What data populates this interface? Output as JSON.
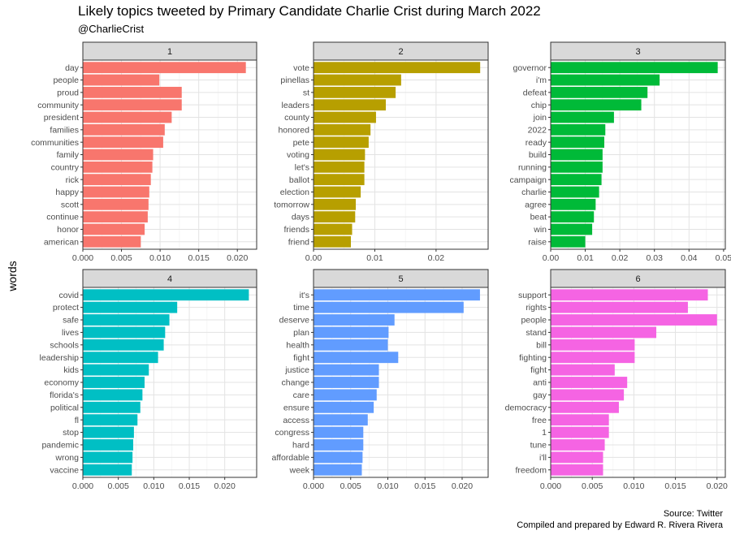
{
  "title": "Likely topics tweeted by Primary Candidate Charlie Crist during March 2022",
  "subtitle": "@CharlieCrist",
  "caption": {
    "line1": "Source: Twitter",
    "line2": "Compiled and prepared by Edward R. Rivera Rivera"
  },
  "chart_data": {
    "type": "bar",
    "orientation": "horizontal",
    "ylabel": "words",
    "xlabel": "",
    "grid": true,
    "legend": "none",
    "facets": [
      {
        "strip": "1",
        "color": "#F8766D",
        "xlim": [
          0,
          0.0225
        ],
        "xticks": [
          0.0,
          0.005,
          0.01,
          0.015,
          0.02
        ],
        "xtick_labels": [
          "0.000",
          "0.005",
          "0.010",
          "0.015",
          "0.020"
        ],
        "categories": [
          "day",
          "people",
          "proud",
          "community",
          "president",
          "families",
          "communities",
          "family",
          "country",
          "rick",
          "happy",
          "scott",
          "continue",
          "honor",
          "american"
        ],
        "values": [
          0.0211,
          0.0099,
          0.0128,
          0.0128,
          0.0115,
          0.0106,
          0.0104,
          0.0091,
          0.009,
          0.0088,
          0.0086,
          0.0085,
          0.0084,
          0.008,
          0.0075
        ]
      },
      {
        "strip": "2",
        "color": "#B79F00",
        "xlim": [
          0,
          0.0285
        ],
        "xticks": [
          0.0,
          0.01,
          0.02
        ],
        "xtick_labels": [
          "0.00",
          "0.01",
          "0.02"
        ],
        "categories": [
          "vote",
          "pinellas",
          "st",
          "leaders",
          "county",
          "honored",
          "pete",
          "voting",
          "let's",
          "ballot",
          "election",
          "tomorrow",
          "days",
          "friends",
          "friend"
        ],
        "values": [
          0.0272,
          0.0143,
          0.0134,
          0.0118,
          0.0102,
          0.0093,
          0.009,
          0.0084,
          0.0083,
          0.0083,
          0.0077,
          0.0069,
          0.0068,
          0.0063,
          0.0061
        ]
      },
      {
        "strip": "3",
        "color": "#00BA38",
        "xlim": [
          0,
          0.0505
        ],
        "xticks": [
          0.0,
          0.01,
          0.02,
          0.03,
          0.04,
          0.05
        ],
        "xtick_labels": [
          "0.00",
          "0.01",
          "0.02",
          "0.03",
          "0.04",
          "0.05"
        ],
        "categories": [
          "governor",
          "i'm",
          "defeat",
          "chip",
          "join",
          "2022",
          "ready",
          "build",
          "running",
          "campaign",
          "charlie",
          "agree",
          "beat",
          "win",
          "raise"
        ],
        "values": [
          0.0483,
          0.0315,
          0.028,
          0.0262,
          0.0183,
          0.0158,
          0.0155,
          0.015,
          0.015,
          0.0147,
          0.014,
          0.013,
          0.0125,
          0.012,
          0.01
        ]
      },
      {
        "strip": "4",
        "color": "#00BFC4",
        "xlim": [
          0,
          0.0245
        ],
        "xticks": [
          0.0,
          0.005,
          0.01,
          0.015,
          0.02
        ],
        "xtick_labels": [
          "0.000",
          "0.005",
          "0.010",
          "0.015",
          "0.020"
        ],
        "categories": [
          "covid",
          "protect",
          "safe",
          "lives",
          "schools",
          "leadership",
          "kids",
          "economy",
          "florida's",
          "political",
          "fl",
          "stop",
          "pandemic",
          "wrong",
          "vaccine"
        ],
        "values": [
          0.0234,
          0.0133,
          0.0122,
          0.0116,
          0.0114,
          0.0106,
          0.0093,
          0.0087,
          0.0084,
          0.0081,
          0.0077,
          0.0072,
          0.0071,
          0.007,
          0.0069
        ]
      },
      {
        "strip": "5",
        "color": "#619CFF",
        "xlim": [
          0,
          0.0235
        ],
        "xticks": [
          0.0,
          0.005,
          0.01,
          0.015,
          0.02
        ],
        "xtick_labels": [
          "0.000",
          "0.005",
          "0.010",
          "0.015",
          "0.020"
        ],
        "categories": [
          "it's",
          "time",
          "deserve",
          "plan",
          "health",
          "fight",
          "justice",
          "change",
          "care",
          "ensure",
          "access",
          "congress",
          "hard",
          "affordable",
          "week"
        ],
        "values": [
          0.0224,
          0.0202,
          0.0109,
          0.0101,
          0.01,
          0.0114,
          0.0088,
          0.0088,
          0.0085,
          0.0081,
          0.0073,
          0.0067,
          0.0067,
          0.0066,
          0.0065
        ]
      },
      {
        "strip": "6",
        "color": "#F564E3",
        "xlim": [
          0,
          0.021
        ],
        "xticks": [
          0.0,
          0.005,
          0.01,
          0.015,
          0.02
        ],
        "xtick_labels": [
          "0.000",
          "0.005",
          "0.010",
          "0.015",
          "0.020"
        ],
        "categories": [
          "support",
          "rights",
          "people",
          "stand",
          "bill",
          "fighting",
          "fight",
          "anti",
          "gay",
          "democracy",
          "free",
          "1",
          "tune",
          "i'll",
          "freedom"
        ],
        "values": [
          0.0189,
          0.0165,
          0.02,
          0.0127,
          0.0101,
          0.0101,
          0.0077,
          0.0092,
          0.0088,
          0.0082,
          0.007,
          0.007,
          0.0065,
          0.0063,
          0.0063
        ]
      }
    ]
  }
}
